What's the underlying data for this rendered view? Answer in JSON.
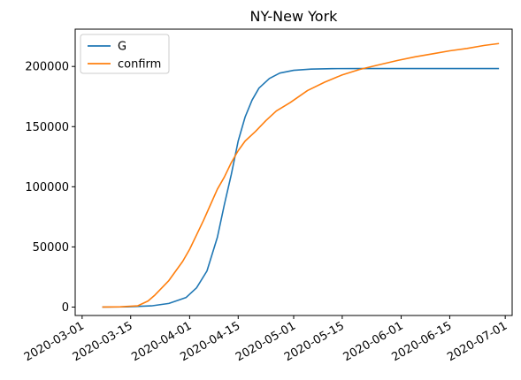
{
  "chart_data": {
    "type": "line",
    "title": "NY-New York",
    "xlabel": "",
    "ylabel": "",
    "x_axis": {
      "type": "date",
      "range": [
        "2020-02-28",
        "2020-07-03"
      ],
      "ticks": [
        "2020-03-01",
        "2020-03-15",
        "2020-04-01",
        "2020-04-15",
        "2020-05-01",
        "2020-05-15",
        "2020-06-01",
        "2020-06-15",
        "2020-07-01"
      ]
    },
    "y_axis": {
      "range": [
        -7000,
        231000
      ],
      "ticks": [
        0,
        50000,
        100000,
        150000,
        200000
      ],
      "tick_labels": [
        "0",
        "50000",
        "100000",
        "150000",
        "200000"
      ]
    },
    "grid": false,
    "legend_placement": "top-left",
    "series": [
      {
        "name": "G",
        "color": "#1f77b4",
        "points": [
          [
            "2020-03-07",
            0
          ],
          [
            "2020-03-14",
            200
          ],
          [
            "2020-03-21",
            1000
          ],
          [
            "2020-03-26",
            3000
          ],
          [
            "2020-03-31",
            8000
          ],
          [
            "2020-04-03",
            16000
          ],
          [
            "2020-04-06",
            30000
          ],
          [
            "2020-04-09",
            58000
          ],
          [
            "2020-04-11",
            85000
          ],
          [
            "2020-04-13",
            110000
          ],
          [
            "2020-04-15",
            138000
          ],
          [
            "2020-04-17",
            158000
          ],
          [
            "2020-04-19",
            172000
          ],
          [
            "2020-04-21",
            182000
          ],
          [
            "2020-04-24",
            190000
          ],
          [
            "2020-04-27",
            194500
          ],
          [
            "2020-05-01",
            196800
          ],
          [
            "2020-05-06",
            197800
          ],
          [
            "2020-05-12",
            198200
          ],
          [
            "2020-05-20",
            198300
          ],
          [
            "2020-06-15",
            198300
          ],
          [
            "2020-06-29",
            198300
          ]
        ]
      },
      {
        "name": "confirm",
        "color": "#ff7f0e",
        "points": [
          [
            "2020-03-07",
            0
          ],
          [
            "2020-03-12",
            200
          ],
          [
            "2020-03-17",
            1000
          ],
          [
            "2020-03-20",
            5000
          ],
          [
            "2020-03-22",
            10000
          ],
          [
            "2020-03-24",
            16000
          ],
          [
            "2020-03-26",
            22000
          ],
          [
            "2020-03-28",
            30000
          ],
          [
            "2020-03-30",
            38000
          ],
          [
            "2020-04-01",
            48000
          ],
          [
            "2020-04-03",
            60000
          ],
          [
            "2020-04-05",
            72000
          ],
          [
            "2020-04-07",
            85000
          ],
          [
            "2020-04-09",
            98000
          ],
          [
            "2020-04-11",
            108000
          ],
          [
            "2020-04-13",
            120000
          ],
          [
            "2020-04-15",
            130000
          ],
          [
            "2020-04-17",
            138000
          ],
          [
            "2020-04-20",
            146000
          ],
          [
            "2020-04-23",
            155000
          ],
          [
            "2020-04-26",
            163000
          ],
          [
            "2020-04-30",
            170000
          ],
          [
            "2020-05-05",
            180000
          ],
          [
            "2020-05-10",
            187000
          ],
          [
            "2020-05-15",
            193000
          ],
          [
            "2020-05-20",
            197500
          ],
          [
            "2020-05-25",
            201000
          ],
          [
            "2020-05-31",
            205000
          ],
          [
            "2020-06-05",
            208000
          ],
          [
            "2020-06-10",
            210500
          ],
          [
            "2020-06-15",
            213000
          ],
          [
            "2020-06-20",
            215000
          ],
          [
            "2020-06-25",
            217500
          ],
          [
            "2020-06-29",
            219000
          ]
        ]
      }
    ]
  }
}
